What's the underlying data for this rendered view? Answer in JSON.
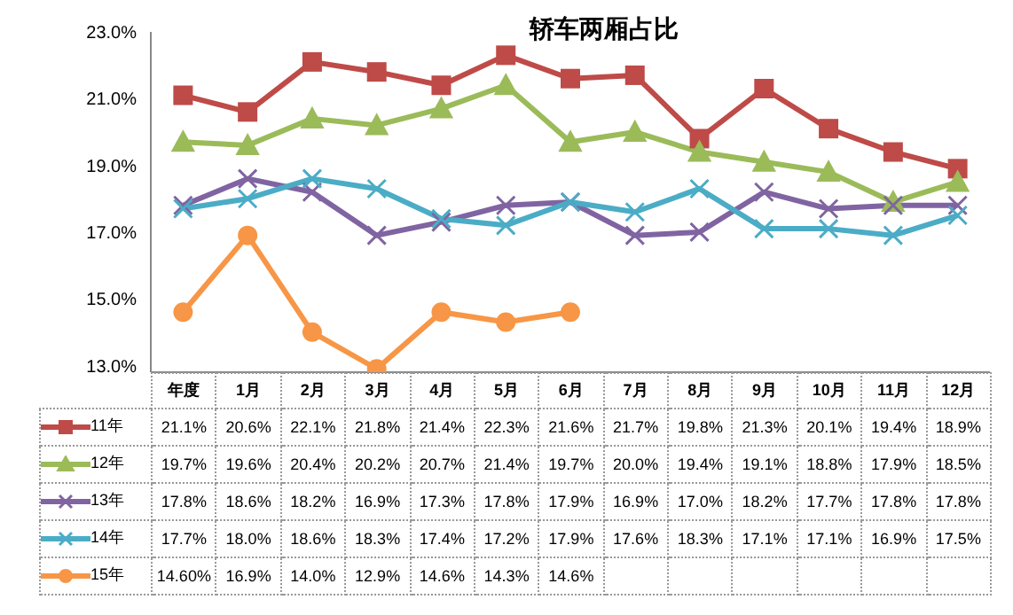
{
  "chart_data": {
    "type": "line",
    "title": "轿车两厢占比",
    "categories": [
      "年度",
      "1月",
      "2月",
      "3月",
      "4月",
      "5月",
      "6月",
      "7月",
      "8月",
      "9月",
      "10月",
      "11月",
      "12月"
    ],
    "ylim": [
      12.8,
      23
    ],
    "yticks": [
      {
        "value": 13,
        "label": "13.0%"
      },
      {
        "value": 15,
        "label": "15.0%"
      },
      {
        "value": 17,
        "label": "17.0%"
      },
      {
        "value": 19,
        "label": "19.0%"
      },
      {
        "value": 21,
        "label": "21.0%"
      },
      {
        "value": 23,
        "label": "23.0%"
      }
    ],
    "grid": false,
    "legend": "bottom",
    "line_style": "solid",
    "series": [
      {
        "name": "11年",
        "color": "#be4b48",
        "marker": "square",
        "values": [
          21.1,
          20.6,
          22.1,
          21.8,
          21.4,
          22.3,
          21.6,
          21.7,
          19.8,
          21.3,
          20.1,
          19.4,
          18.9
        ],
        "value_labels": [
          "21.1%",
          "20.6%",
          "22.1%",
          "21.8%",
          "21.4%",
          "22.3%",
          "21.6%",
          "21.7%",
          "19.8%",
          "21.3%",
          "20.1%",
          "19.4%",
          "18.9%"
        ]
      },
      {
        "name": "12年",
        "color": "#9bbb59",
        "marker": "triangle",
        "values": [
          19.7,
          19.6,
          20.4,
          20.2,
          20.7,
          21.4,
          19.7,
          20.0,
          19.4,
          19.1,
          18.8,
          17.9,
          18.5
        ],
        "value_labels": [
          "19.7%",
          "19.6%",
          "20.4%",
          "20.2%",
          "20.7%",
          "21.4%",
          "19.7%",
          "20.0%",
          "19.4%",
          "19.1%",
          "18.8%",
          "17.9%",
          "18.5%"
        ]
      },
      {
        "name": "13年",
        "color": "#8064a2",
        "marker": "cross",
        "values": [
          17.8,
          18.6,
          18.2,
          16.9,
          17.3,
          17.8,
          17.9,
          16.9,
          17.0,
          18.2,
          17.7,
          17.8,
          17.8
        ],
        "value_labels": [
          "17.8%",
          "18.6%",
          "18.2%",
          "16.9%",
          "17.3%",
          "17.8%",
          "17.9%",
          "16.9%",
          "17.0%",
          "18.2%",
          "17.7%",
          "17.8%",
          "17.8%"
        ]
      },
      {
        "name": "14年",
        "color": "#4bacc6",
        "marker": "cross",
        "values": [
          17.7,
          18.0,
          18.6,
          18.3,
          17.4,
          17.2,
          17.9,
          17.6,
          18.3,
          17.1,
          17.1,
          16.9,
          17.5
        ],
        "value_labels": [
          "17.7%",
          "18.0%",
          "18.6%",
          "18.3%",
          "17.4%",
          "17.2%",
          "17.9%",
          "17.6%",
          "18.3%",
          "17.1%",
          "17.1%",
          "16.9%",
          "17.5%"
        ]
      },
      {
        "name": "15年",
        "color": "#f79646",
        "marker": "circle",
        "values": [
          14.6,
          16.9,
          14.0,
          12.9,
          14.6,
          14.3,
          14.6,
          null,
          null,
          null,
          null,
          null,
          null
        ],
        "value_labels": [
          "14.60%",
          "16.9%",
          "14.0%",
          "12.9%",
          "14.6%",
          "14.3%",
          "14.6%",
          null,
          null,
          null,
          null,
          null,
          null
        ]
      }
    ]
  }
}
